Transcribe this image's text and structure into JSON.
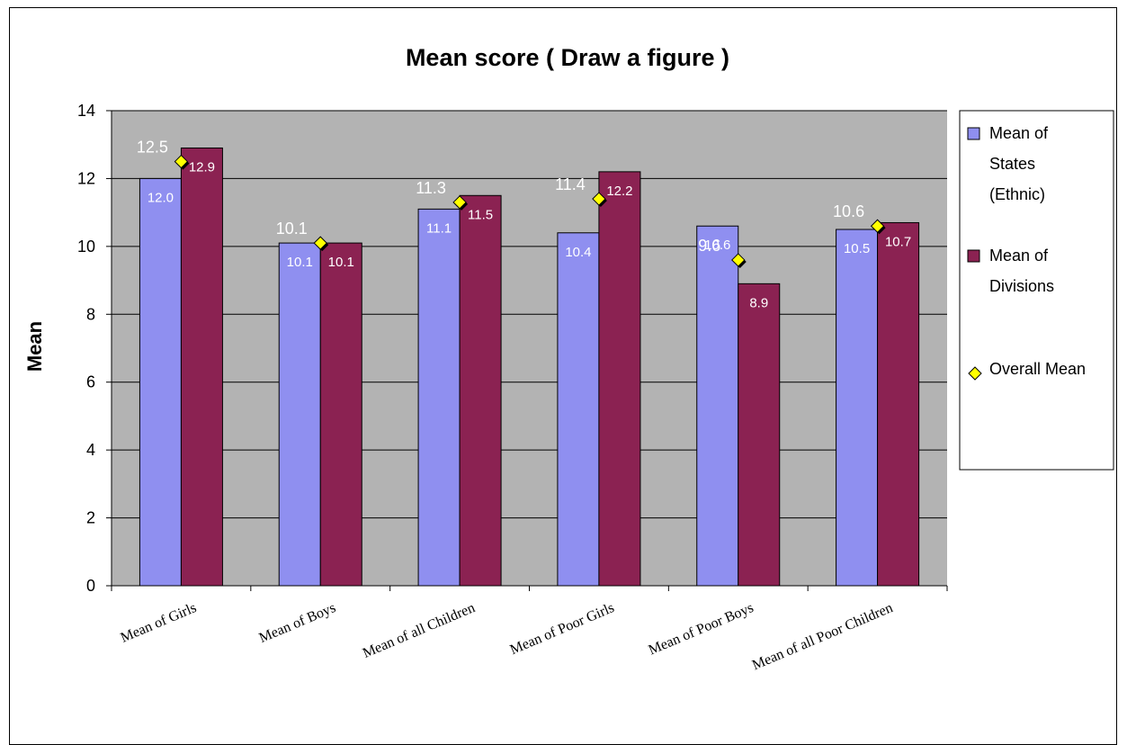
{
  "chart_data": {
    "type": "bar",
    "title": "Mean score ( Draw a figure )",
    "ylabel": "Mean",
    "xlabel": "",
    "ylim": [
      0,
      14
    ],
    "yticks": [
      0,
      2,
      4,
      6,
      8,
      10,
      12,
      14
    ],
    "categories": [
      "Mean of Girls",
      "Mean of Boys",
      "Mean of all Children",
      "Mean of Poor Girls",
      "Mean of Poor Boys",
      "Mean of all Poor Children"
    ],
    "series": [
      {
        "name": "Mean of States (Ethnic)",
        "legend_lines": [
          "Mean of",
          "States",
          "(Ethnic)"
        ],
        "color": "#8f8ff0",
        "values": [
          12.0,
          10.1,
          11.1,
          10.4,
          10.6,
          10.5
        ],
        "labels": [
          "12.0",
          "10.1",
          "11.1",
          "10.4",
          "10.6",
          "10.5"
        ]
      },
      {
        "name": "Mean of Divisions",
        "legend_lines": [
          "Mean of",
          "Divisions"
        ],
        "color": "#8b2252",
        "values": [
          12.9,
          10.1,
          11.5,
          12.2,
          8.9,
          10.7
        ],
        "labels": [
          "12.9",
          "10.1",
          "11.5",
          "12.2",
          "8.9",
          "10.7"
        ]
      }
    ],
    "overall": {
      "name": "Overall Mean",
      "color": "#ffff00",
      "values": [
        12.5,
        10.1,
        11.3,
        11.4,
        9.6,
        10.6
      ],
      "labels": [
        "12.5",
        "10.1",
        "11.3",
        "11.4",
        "9.6",
        "10.6"
      ]
    },
    "plot_background": "#b3b3b3",
    "grid": true,
    "legend_position": "right"
  }
}
